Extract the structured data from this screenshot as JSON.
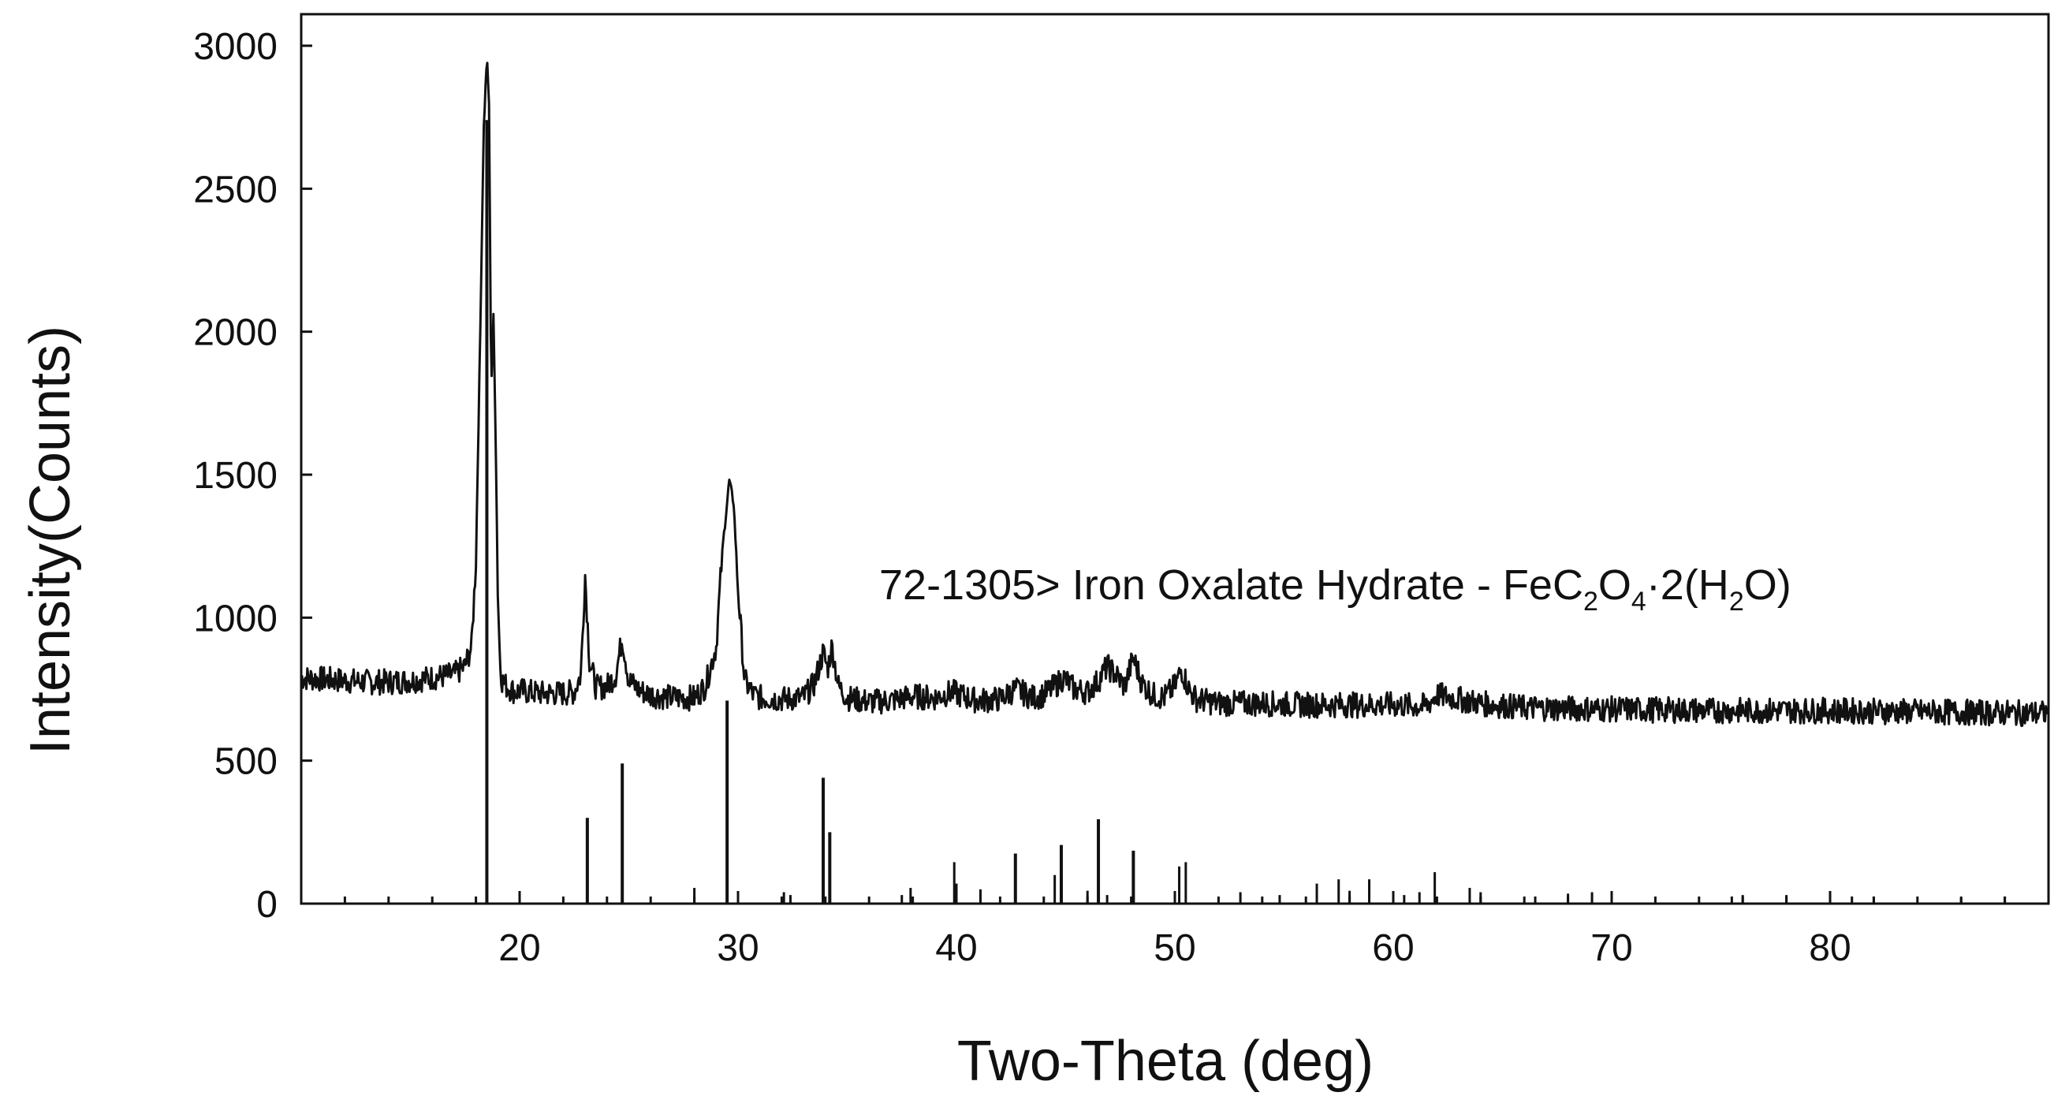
{
  "chart_data": {
    "type": "line",
    "xlabel": "Two-Theta (deg)",
    "ylabel": "Intensity(Counts)",
    "xlim": [
      10,
      90
    ],
    "ylim": [
      0,
      3000
    ],
    "x_ticks": [
      20,
      30,
      40,
      50,
      60,
      70,
      80
    ],
    "y_ticks": [
      0,
      500,
      1000,
      1500,
      2000,
      2500,
      3000
    ],
    "grid": false,
    "annotation": {
      "prefix": "72-1305> Iron Oxalate Hydrate - FeC",
      "sub1": "2",
      "mid1": "O",
      "sub2": "4",
      "mid2": "·2(H",
      "sub3": "2",
      "suffix": "O)"
    },
    "series": [
      {
        "style": "line",
        "color": "#111111",
        "x": [
          10,
          11,
          12,
          13,
          14,
          15,
          16,
          17,
          17.5,
          17.8,
          18.0,
          18.2,
          18.35,
          18.5,
          18.6,
          18.7,
          18.8,
          18.9,
          19.0,
          19.1,
          19.2,
          19.4,
          19.6,
          19.8,
          20.0,
          20.5,
          21,
          21.5,
          22,
          22.5,
          22.8,
          23.0,
          23.2,
          23.5,
          24,
          24.4,
          24.7,
          25.0,
          25.5,
          26,
          27,
          28,
          28.5,
          29.0,
          29.3,
          29.6,
          29.8,
          30.0,
          30.3,
          30.7,
          31,
          32,
          33,
          33.5,
          33.9,
          34.1,
          34.3,
          34.6,
          35,
          36,
          37,
          38,
          39,
          39.8,
          40.5,
          41,
          42,
          42.7,
          43.5,
          44,
          44.5,
          44.9,
          45.4,
          46,
          46.5,
          46.9,
          47.3,
          47.7,
          48.1,
          48.5,
          49,
          49.5,
          50.0,
          50.3,
          50.7,
          51,
          52,
          54,
          56,
          58,
          60,
          61.5,
          62,
          64,
          66,
          70,
          75,
          80,
          85,
          90
        ],
        "y": [
          790,
          785,
          780,
          775,
          775,
          780,
          790,
          800,
          830,
          900,
          1200,
          2000,
          2700,
          2960,
          2800,
          1800,
          2050,
          1650,
          1100,
          850,
          780,
          760,
          750,
          740,
          745,
          740,
          735,
          735,
          735,
          740,
          800,
          1150,
          850,
          755,
          760,
          800,
          930,
          780,
          745,
          730,
          720,
          720,
          760,
          900,
          1250,
          1480,
          1400,
          1100,
          780,
          730,
          720,
          715,
          720,
          770,
          880,
          820,
          900,
          760,
          720,
          705,
          710,
          725,
          720,
          740,
          720,
          710,
          715,
          750,
          720,
          730,
          760,
          790,
          750,
          740,
          780,
          830,
          800,
          760,
          860,
          770,
          730,
          720,
          760,
          820,
          740,
          715,
          700,
          700,
          695,
          695,
          695,
          690,
          730,
          700,
          685,
          680,
          675,
          675,
          670,
          665
        ]
      },
      {
        "style": "sticks",
        "color": "#111111",
        "x": [
          18.5,
          23.1,
          24.7,
          28.0,
          29.5,
          32.1,
          32.4,
          33.9,
          34.2,
          37.5,
          37.9,
          39.9,
          40.0,
          41.1,
          42.7,
          44.5,
          44.8,
          46.0,
          46.5,
          46.9,
          48.1,
          50.0,
          50.2,
          50.5,
          53.0,
          54.8,
          56.5,
          57.5,
          58.0,
          58.9,
          60.5,
          61.2,
          61.9,
          63.5,
          64.0,
          66.5,
          68.0,
          69.1,
          75.5,
          76.0,
          78.0,
          81.0,
          82.0,
          86.0,
          88.0
        ],
        "y": [
          2740,
          300,
          490,
          55,
          710,
          40,
          30,
          440,
          250,
          30,
          55,
          145,
          70,
          50,
          175,
          100,
          205,
          45,
          295,
          30,
          185,
          40,
          130,
          145,
          40,
          30,
          70,
          85,
          45,
          85,
          30,
          40,
          110,
          55,
          40,
          25,
          35,
          40,
          25,
          30,
          30,
          25,
          25,
          20,
          25
        ]
      }
    ]
  }
}
